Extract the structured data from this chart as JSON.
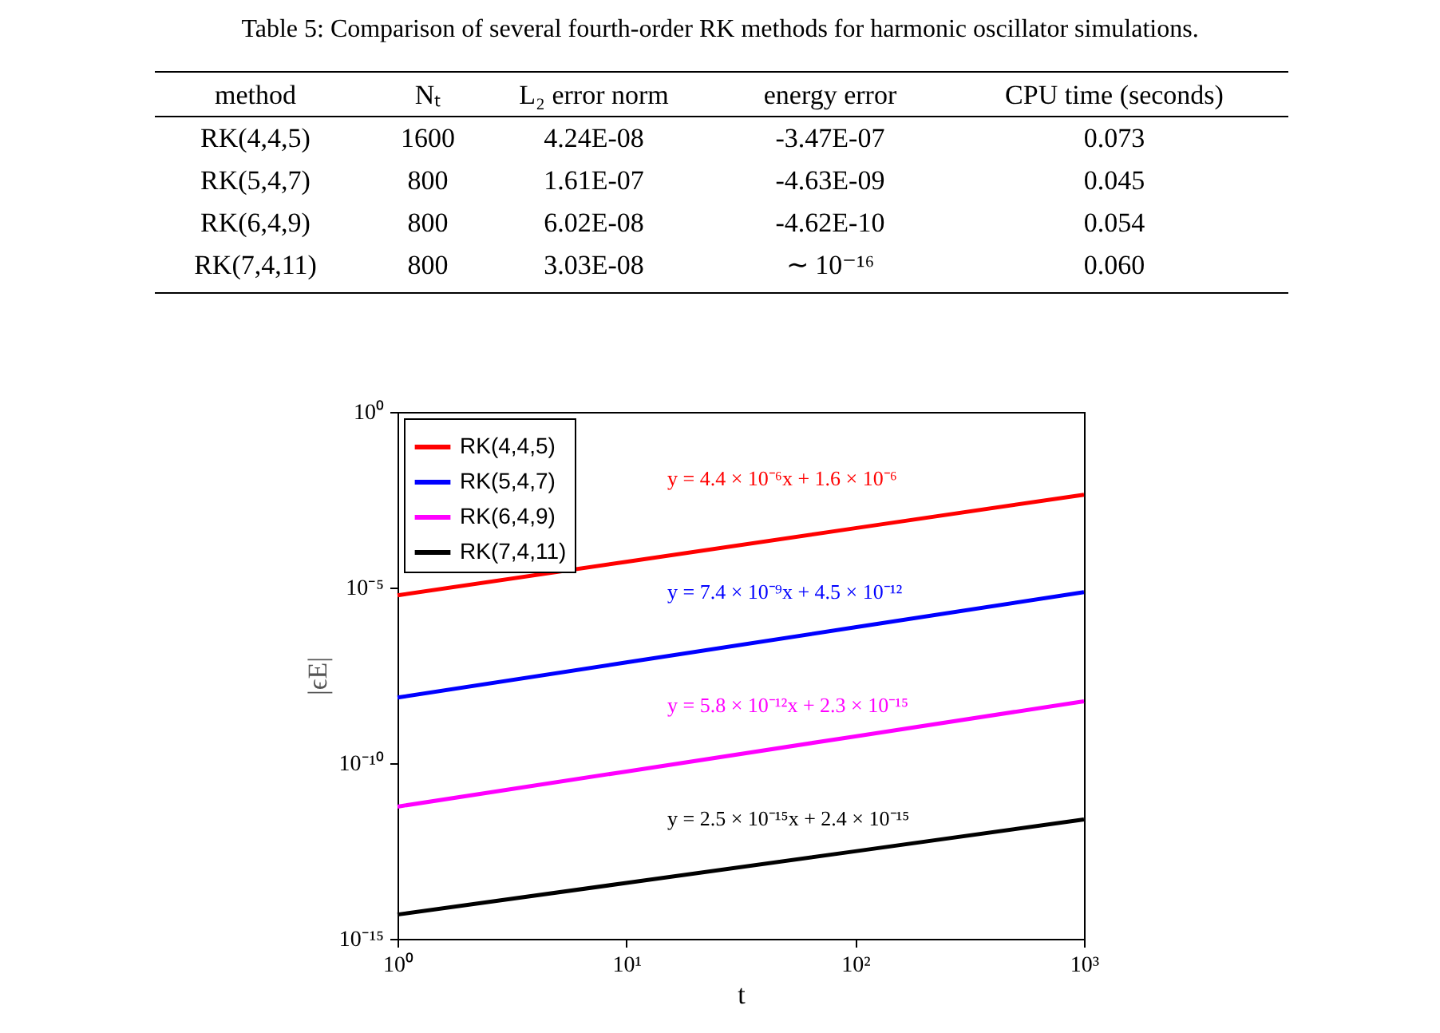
{
  "chart_data": [
    {
      "type": "other",
      "title": "Table 5: Comparison of several fourth-order RK methods for harmonic oscillator simulations.",
      "categories": [
        "method",
        "Nₜ",
        "L₂ error norm",
        "energy error",
        "CPU time (seconds)"
      ],
      "annotations": [
        "RK(4,4,5)",
        "1600",
        "4.24E-08",
        "-3.47E-07",
        "0.073",
        "RK(5,4,7)",
        "800",
        "1.61E-07",
        "-4.63E-09",
        "0.045",
        "RK(6,4,9)",
        "800",
        "6.02E-08",
        "-4.62E-10",
        "0.054",
        "RK(7,4,11)",
        "800",
        "3.03E-08",
        "∼ 10⁻¹⁶",
        "0.060"
      ]
    },
    {
      "type": "line",
      "xlabel": "t",
      "ylabel": "|ϵE|",
      "log": "xy",
      "legend": "top left",
      "x": [
        1,
        10,
        100,
        1000
      ],
      "xlim": [
        1,
        1000
      ],
      "ylim": [
        1e-15,
        1
      ],
      "xticks": [
        {
          "value": 1,
          "label": "10⁰"
        },
        {
          "value": 10,
          "label": "10¹"
        },
        {
          "value": 100,
          "label": "10²"
        },
        {
          "value": 1000,
          "label": "10³"
        }
      ],
      "yticks": [
        {
          "value": 1e-15,
          "label": "10⁻¹⁵"
        },
        {
          "value": 1e-10,
          "label": "10⁻¹⁰"
        },
        {
          "value": 1e-05,
          "label": "10⁻⁵"
        },
        {
          "value": 1,
          "label": "10⁰"
        }
      ],
      "series": [
        {
          "name": "RK(4,4,5)",
          "color": "#ff0000",
          "values": [
            6e-06,
            5.4e-05,
            0.00049,
            0.0044
          ]
        },
        {
          "name": "RK(5,4,7)",
          "color": "#0000ff",
          "values": [
            7.4e-09,
            7.4e-08,
            7.4e-07,
            7.4e-06
          ]
        },
        {
          "name": "RK(6,4,9)",
          "color": "#ff00ff",
          "values": [
            5.8e-12,
            5.8e-11,
            5.8e-10,
            5.8e-09
          ]
        },
        {
          "name": "RK(7,4,11)",
          "color": "#000000",
          "values": [
            4.9e-15,
            3.9e-14,
            3.1e-13,
            2.5e-12
          ]
        }
      ],
      "annotations": [
        "y = 4.4 × 10⁻⁶x + 1.6 × 10⁻⁶",
        "y = 7.4 × 10⁻⁹x + 4.5 × 10⁻¹²",
        "y = 5.8 × 10⁻¹²x + 2.3 × 10⁻¹⁵",
        "y = 2.5 × 10⁻¹⁵x + 2.4 × 10⁻¹⁵"
      ]
    }
  ]
}
